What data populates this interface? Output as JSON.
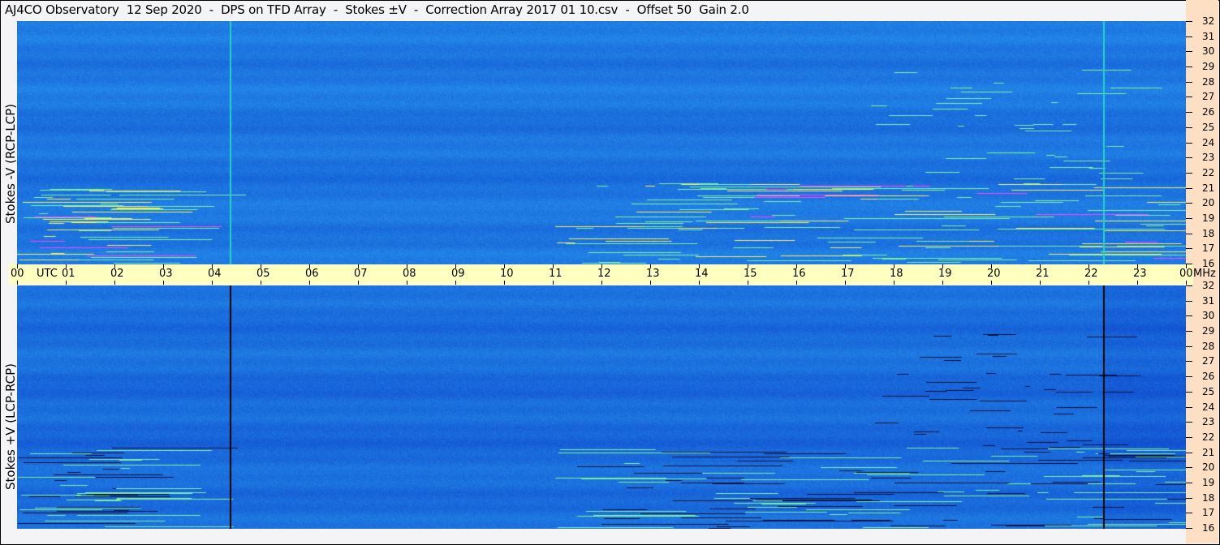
{
  "title": "AJ4CO Observatory  12 Sep 2020  -  DPS on TFD Array  -  Stokes ±V  -  Correction Array 2017 01 10.csv  -  Offset 50  Gain 2.0",
  "chart_data": {
    "type": "heatmap",
    "title": "AJ4CO Observatory  12 Sep 2020  -  DPS on TFD Array  -  Stokes ±V  -  Correction Array 2017 01 10.csv  -  Offset 50  Gain 2.0",
    "x_axis": {
      "unit_label": "UTC",
      "ticks": [
        "00",
        "01",
        "02",
        "03",
        "04",
        "05",
        "06",
        "07",
        "08",
        "09",
        "10",
        "11",
        "12",
        "13",
        "14",
        "15",
        "16",
        "17",
        "18",
        "19",
        "20",
        "21",
        "22",
        "23",
        "00"
      ],
      "range_hours": [
        0,
        24
      ]
    },
    "y_axis": {
      "unit_label": "MHz",
      "ticks": [
        "32",
        "31",
        "30",
        "29",
        "28",
        "27",
        "26",
        "25",
        "24",
        "23",
        "22",
        "21",
        "20",
        "19",
        "18",
        "17",
        "16"
      ],
      "range_mhz": [
        16,
        32
      ]
    },
    "panels": [
      {
        "ylabel": "Stokes -V (RCP-LCP)",
        "marker_line_color": "#22d3c8",
        "marker_times_utc": [
          4.37,
          22.3
        ]
      },
      {
        "ylabel": "Stokes +V (LCP-RCP)",
        "marker_line_color": "#000000",
        "marker_times_utc": [
          4.37,
          22.3
        ]
      }
    ],
    "colors": {
      "background": "#1a6ee8",
      "low": "#0a3fc8",
      "high": "#7df0a0",
      "peak": "#ff40ff"
    }
  }
}
